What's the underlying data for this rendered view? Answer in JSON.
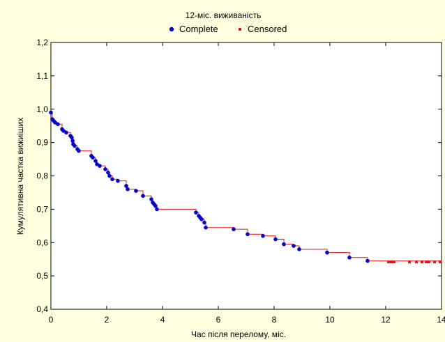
{
  "chart_data": {
    "type": "scatter",
    "title": "12-міс. виживаність",
    "xlabel": "Час після перелому, міс.",
    "ylabel": "Кумулятивна частка вижиіших",
    "xlim": [
      0,
      14
    ],
    "ylim": [
      0.4,
      1.2
    ],
    "x_ticks": [
      "0",
      "2",
      "4",
      "6",
      "8",
      "10",
      "12",
      "14"
    ],
    "y_ticks": [
      "0,4",
      "0,5",
      "0,6",
      "0,7",
      "0,8",
      "0,9",
      "1,0",
      "1,1",
      "1,2"
    ],
    "grid": false,
    "legend": "top",
    "colors": {
      "complete": "#0000cc",
      "censored": "#e8141a",
      "step": "#e8141a",
      "background": "#ffffe0"
    },
    "series": [
      {
        "name": "Complete",
        "marker": "circle",
        "x": [
          0.0,
          0.05,
          0.1,
          0.15,
          0.25,
          0.4,
          0.45,
          0.55,
          0.7,
          0.75,
          0.78,
          0.8,
          0.85,
          0.95,
          1.0,
          1.45,
          1.5,
          1.6,
          1.65,
          1.75,
          1.95,
          2.05,
          2.1,
          2.2,
          2.4,
          2.7,
          2.75,
          3.05,
          3.3,
          3.6,
          3.65,
          3.7,
          3.75,
          3.8,
          5.2,
          5.3,
          5.35,
          5.4,
          5.5,
          5.55,
          6.55,
          7.05,
          7.6,
          8.05,
          8.35,
          8.7,
          8.9,
          9.9,
          10.7,
          11.35
        ],
        "y": [
          0.99,
          0.97,
          0.965,
          0.96,
          0.955,
          0.94,
          0.935,
          0.93,
          0.92,
          0.915,
          0.905,
          0.895,
          0.89,
          0.88,
          0.875,
          0.86,
          0.855,
          0.845,
          0.835,
          0.83,
          0.82,
          0.81,
          0.8,
          0.79,
          0.785,
          0.77,
          0.76,
          0.755,
          0.74,
          0.73,
          0.72,
          0.715,
          0.71,
          0.7,
          0.69,
          0.68,
          0.675,
          0.67,
          0.66,
          0.645,
          0.64,
          0.625,
          0.62,
          0.61,
          0.595,
          0.59,
          0.58,
          0.57,
          0.555,
          0.545
        ]
      },
      {
        "name": "Censored",
        "marker": "square",
        "x": [
          12.1,
          12.15,
          12.2,
          12.25,
          12.3,
          12.85,
          13.1,
          13.3,
          13.45,
          13.55,
          13.75,
          13.95
        ],
        "y": [
          0.542,
          0.542,
          0.542,
          0.542,
          0.542,
          0.542,
          0.542,
          0.542,
          0.542,
          0.542,
          0.542,
          0.542
        ]
      }
    ],
    "step_line": {
      "x": [
        0.0,
        0.05,
        0.1,
        0.15,
        0.25,
        0.4,
        0.45,
        0.55,
        0.7,
        0.75,
        0.78,
        0.8,
        0.85,
        0.95,
        1.0,
        1.45,
        1.5,
        1.6,
        1.65,
        1.75,
        1.95,
        2.05,
        2.1,
        2.2,
        2.4,
        2.7,
        2.75,
        3.05,
        3.3,
        3.6,
        3.65,
        3.7,
        3.75,
        3.8,
        5.2,
        5.3,
        5.35,
        5.4,
        5.5,
        5.55,
        6.55,
        7.05,
        7.6,
        8.05,
        8.35,
        8.7,
        8.9,
        9.9,
        10.7,
        11.35,
        14.0
      ],
      "y": [
        0.99,
        0.97,
        0.965,
        0.96,
        0.955,
        0.94,
        0.935,
        0.93,
        0.92,
        0.915,
        0.905,
        0.895,
        0.89,
        0.88,
        0.875,
        0.86,
        0.855,
        0.845,
        0.835,
        0.83,
        0.82,
        0.81,
        0.8,
        0.79,
        0.785,
        0.77,
        0.76,
        0.755,
        0.74,
        0.73,
        0.72,
        0.715,
        0.71,
        0.7,
        0.69,
        0.68,
        0.675,
        0.67,
        0.66,
        0.645,
        0.64,
        0.625,
        0.62,
        0.61,
        0.595,
        0.59,
        0.58,
        0.57,
        0.555,
        0.545,
        0.542
      ]
    }
  }
}
